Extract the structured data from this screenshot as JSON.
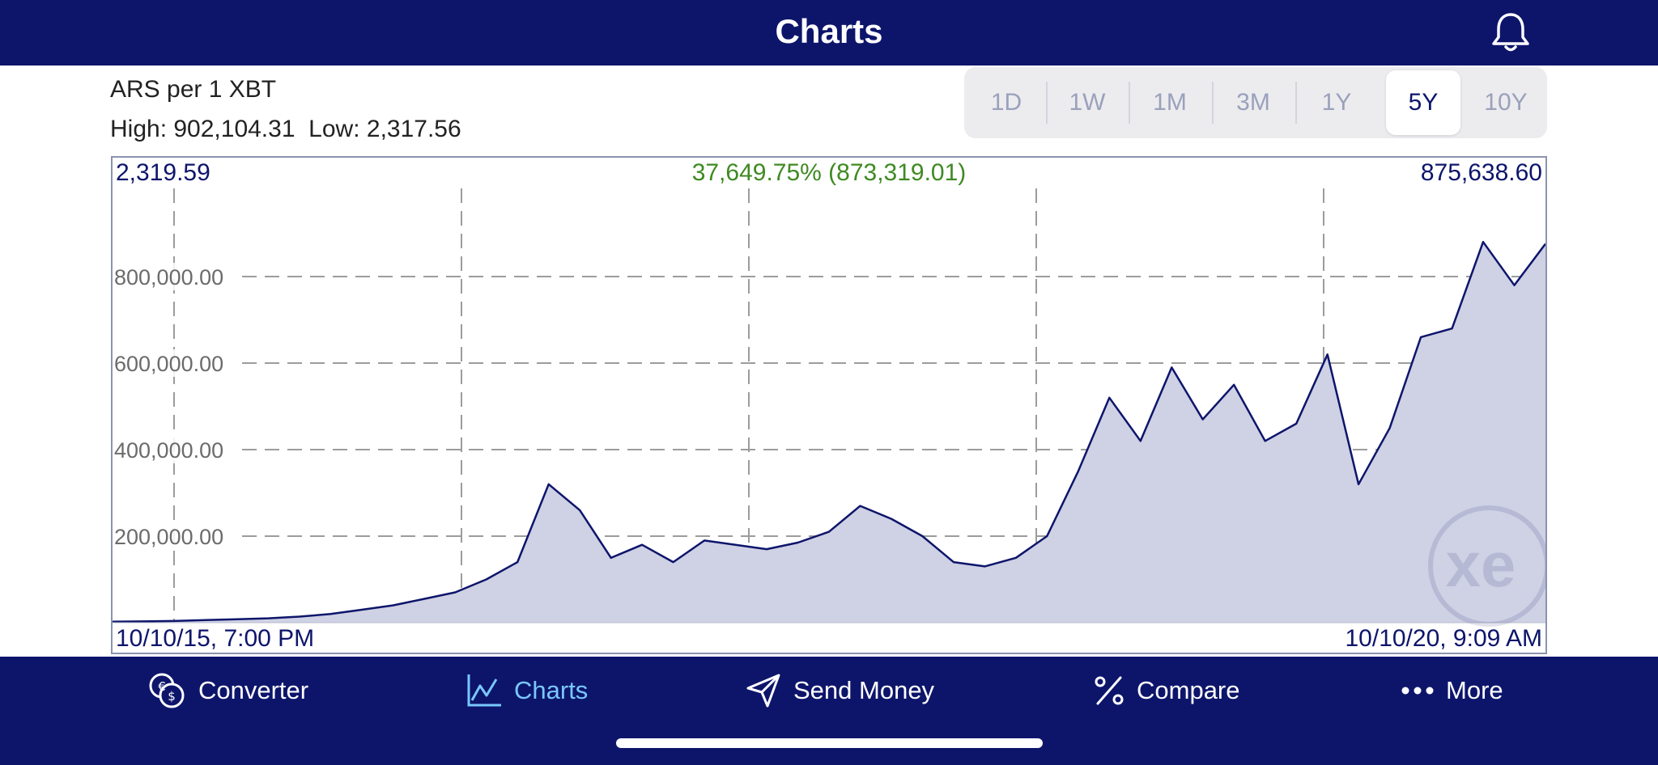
{
  "header": {
    "title": "Charts",
    "bell_icon": "bell-icon"
  },
  "pair_label": "ARS per 1 XBT",
  "stats": {
    "text": "High: 902,104.31  Low: 2,317.56"
  },
  "ranges": [
    {
      "label": "1D",
      "active": false
    },
    {
      "label": "1W",
      "active": false
    },
    {
      "label": "1M",
      "active": false
    },
    {
      "label": "3M",
      "active": false
    },
    {
      "label": "1Y",
      "active": false
    },
    {
      "label": "5Y",
      "active": true
    },
    {
      "label": "10Y",
      "active": false
    }
  ],
  "chart": {
    "start_value": "2,319.59",
    "end_value": "875,638.60",
    "change": "37,649.75% (873,319.01)",
    "start_date": "10/10/15, 7:00 PM",
    "end_date": "10/10/20, 9:09 AM",
    "watermark_icon": "xe-logo-icon"
  },
  "chart_data": {
    "type": "area",
    "x_range": [
      "10/10/15",
      "10/10/20"
    ],
    "y_ticks": [
      "200,000.00",
      "400,000.00",
      "600,000.00",
      "800,000.00"
    ],
    "y_tick_values": [
      200000,
      400000,
      600000,
      800000
    ],
    "ylim": [
      0,
      1000000
    ],
    "grid": true,
    "line_color": "#0d156b",
    "fill_color": "#cfd1e4",
    "series": [
      {
        "values": [
          2320,
          3000,
          4000,
          6000,
          8000,
          10000,
          14000,
          20000,
          30000,
          40000,
          55000,
          70000,
          100000,
          140000,
          320000,
          260000,
          150000,
          180000,
          140000,
          190000,
          180000,
          170000,
          185000,
          210000,
          270000,
          240000,
          200000,
          140000,
          130000,
          150000,
          200000,
          350000,
          520000,
          420000,
          590000,
          470000,
          550000,
          420000,
          460000,
          620000,
          320000,
          450000,
          660000,
          680000,
          880000,
          780000,
          875638
        ]
      }
    ]
  },
  "nav": [
    {
      "label": "Converter",
      "icon": "converter-icon",
      "active": false
    },
    {
      "label": "Charts",
      "icon": "charts-icon",
      "active": true
    },
    {
      "label": "Send Money",
      "icon": "send-money-icon",
      "active": false
    },
    {
      "label": "Compare",
      "icon": "compare-icon",
      "active": false
    },
    {
      "label": "More",
      "icon": "more-icon",
      "active": false
    }
  ]
}
